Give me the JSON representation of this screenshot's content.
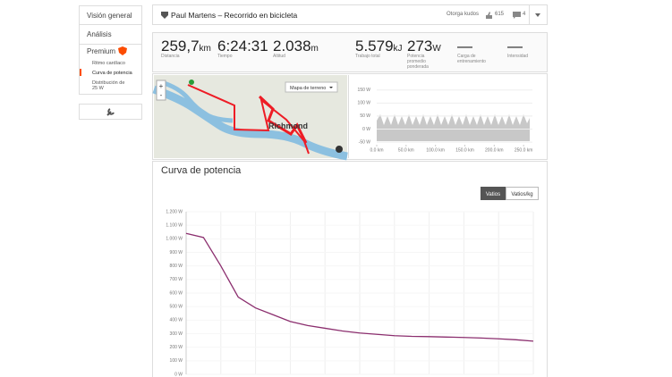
{
  "sidebar": {
    "items": [
      "Visión general",
      "Análisis",
      "Premium"
    ],
    "premium_items": [
      "Ritmo cardíaco",
      "Curva de potencia",
      "Distribución de 25 W"
    ]
  },
  "header": {
    "title": "Paul Martens – Recorrido en bicicleta",
    "kudos_button": "Otorga kudos",
    "kudos_count": "615",
    "comment_count": "4"
  },
  "stats": [
    {
      "value": "259,7",
      "unit": "km",
      "label": "Distancia"
    },
    {
      "value": "6:24:31",
      "label": "Tiempo"
    },
    {
      "value": "2.038",
      "unit": "m",
      "label": "Altitud"
    },
    {
      "value": "5.579",
      "unit": "kJ",
      "label": "Trabajo total"
    },
    {
      "value": "273",
      "unit": "W",
      "label": "Potencia promedio ponderada"
    },
    {
      "value": "—",
      "label": "Carga de entrenamiento"
    },
    {
      "value": "—",
      "label": "Intensidad"
    }
  ],
  "map": {
    "type_button": "Mapa de terreno",
    "city_label": "Richmond"
  },
  "mini_chart": {
    "xlim": [
      0,
      265
    ],
    "ylim": [
      -60,
      180
    ],
    "yticks": [
      {
        "value": 150,
        "label": "150 W"
      },
      {
        "value": 100,
        "label": "100 W"
      },
      {
        "value": 50,
        "label": "50 W"
      },
      {
        "value": 0,
        "label": "0 W"
      },
      {
        "value": -50,
        "label": "-50 W"
      }
    ],
    "xticks": [
      {
        "value": 0,
        "label": "0.0 km"
      },
      {
        "value": 50,
        "label": "50.0 km"
      },
      {
        "value": 100,
        "label": "100.0 km"
      },
      {
        "value": 150,
        "label": "150.0 km"
      },
      {
        "value": 200,
        "label": "200.0 km"
      },
      {
        "value": 250,
        "label": "250.0 km"
      }
    ]
  },
  "chart_data": {
    "type": "line",
    "title": "Curva de potencia",
    "toggle": [
      "Vatios",
      "Vatios/kg"
    ],
    "color": "#8b2e6e",
    "values": [
      1040,
      1010,
      800,
      570,
      490,
      440,
      390,
      360,
      340,
      320,
      305,
      295,
      285,
      280,
      278,
      275,
      272,
      268,
      262,
      255,
      245
    ],
    "ylim": [
      0,
      1200
    ],
    "yticks": [
      {
        "value": 0,
        "label": "0 W"
      },
      {
        "value": 100,
        "label": "100 W"
      },
      {
        "value": 200,
        "label": "200 W"
      },
      {
        "value": 300,
        "label": "300 W"
      },
      {
        "value": 400,
        "label": "400 W"
      },
      {
        "value": 500,
        "label": "500 W"
      },
      {
        "value": 600,
        "label": "600 W"
      },
      {
        "value": 700,
        "label": "700 W"
      },
      {
        "value": 800,
        "label": "800 W"
      },
      {
        "value": 900,
        "label": "900 W"
      },
      {
        "value": 1000,
        "label": "1.000 W"
      },
      {
        "value": 1100,
        "label": "1.100 W"
      },
      {
        "value": 1200,
        "label": "1.200 W"
      }
    ],
    "grid": true
  }
}
